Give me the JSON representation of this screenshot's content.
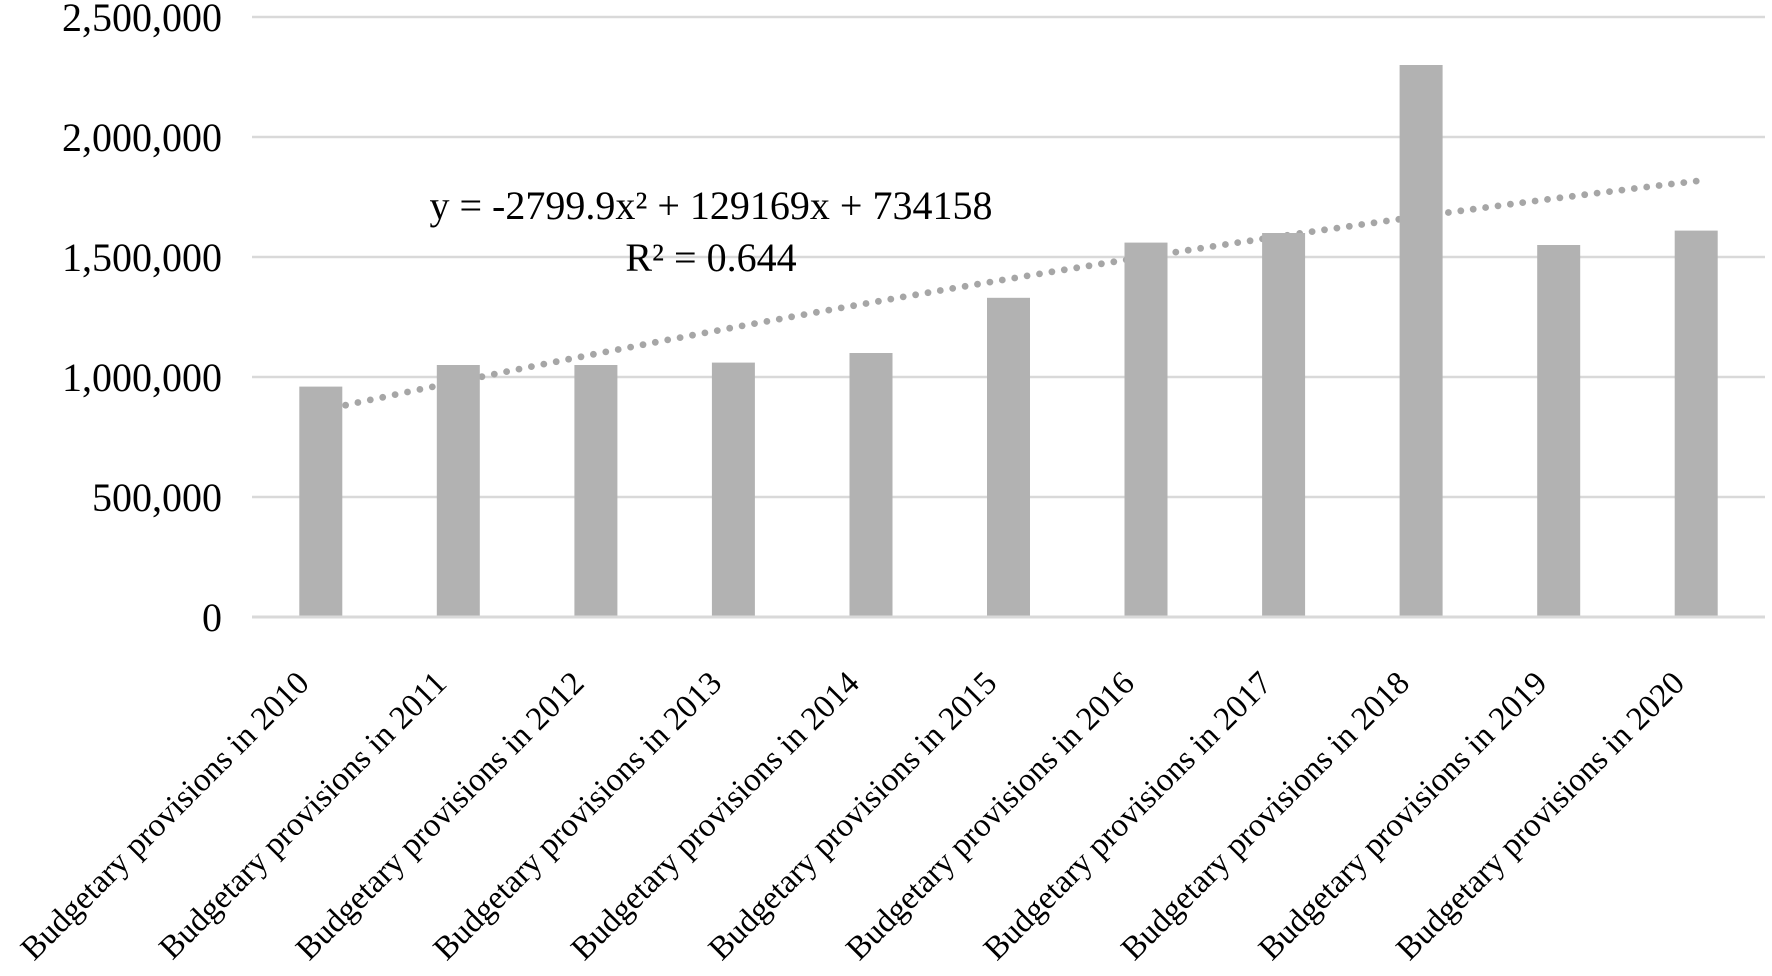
{
  "chart_data": {
    "type": "bar",
    "title": "",
    "xlabel": "",
    "ylabel": "",
    "categories": [
      "Budgetary provisions in 2010",
      "Budgetary provisions in 2011",
      "Budgetary provisions in 2012",
      "Budgetary provisions in 2013",
      "Budgetary provisions in 2014",
      "Budgetary provisions in 2015",
      "Budgetary provisions in 2016",
      "Budgetary provisions in 2017",
      "Budgetary provisions in 2018",
      "Budgetary provisions in 2019",
      "Budgetary provisions in 2020"
    ],
    "values": [
      960000,
      1050000,
      1050000,
      1060000,
      1100000,
      1330000,
      1560000,
      1600000,
      2300000,
      1550000,
      1610000
    ],
    "ylim": [
      0,
      2500000
    ],
    "y_tick_step": 500000,
    "y_tick_labels": [
      "0",
      "500,000",
      "1,000,000",
      "1,500,000",
      "2,000,000",
      "2,500,000"
    ],
    "grid": true,
    "legend_position": "none",
    "bar_color": "#b2b2b2",
    "gridline_color": "#d9d9d9",
    "text_color": "#000000",
    "trendline": {
      "kind": "polynomial-order-2",
      "style": "dotted",
      "color": "#a6a6a6",
      "coefficients": {
        "a": -2799.9,
        "b": 129169,
        "c": 734158
      },
      "equation_label": "y = -2799.9x² + 129169x + 734158",
      "r_squared_label": "R² = 0.644"
    }
  }
}
